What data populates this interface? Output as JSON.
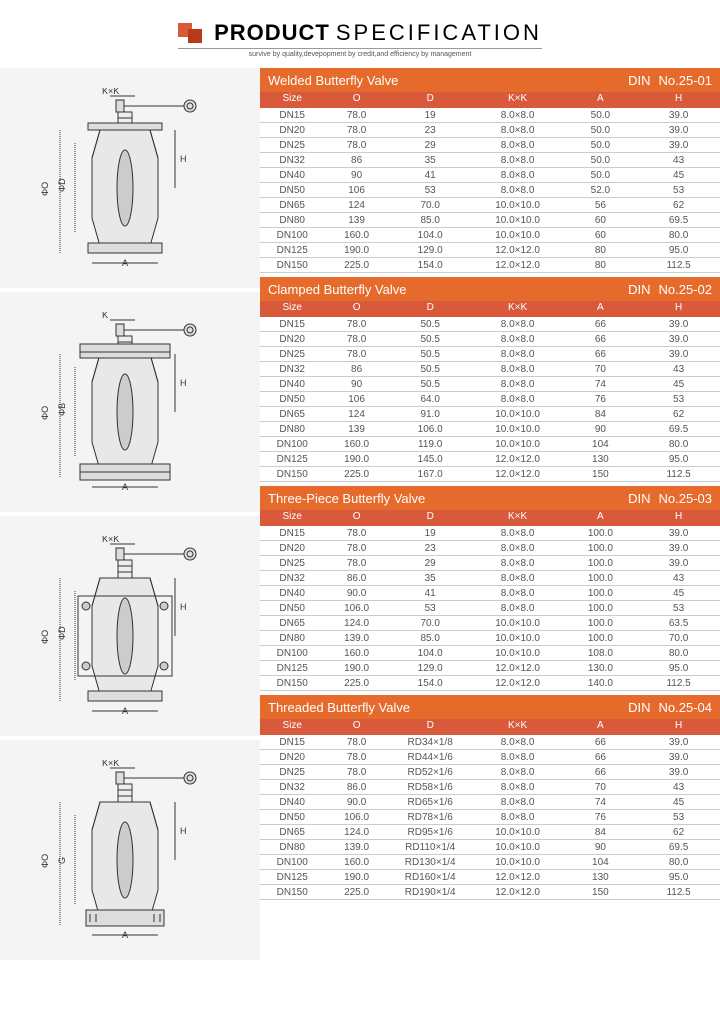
{
  "header": {
    "title_bold": "PRODUCT",
    "title_thin": "SPECIFICATION",
    "subtitle": "survive by quality,devepopment by credit,and efficiency by management"
  },
  "colors": {
    "header_bg": "#e66a2c",
    "subheader_bg": "#d85a3a",
    "logo1": "#d85a3a",
    "logo2": "#b83a1a",
    "diagram_bg": "#f4f4f4",
    "border": "#cccccc",
    "text": "#555555"
  },
  "columns": [
    "Size",
    "O",
    "D",
    "K×K",
    "A",
    "H"
  ],
  "column_widths_pct": [
    14,
    14,
    18,
    20,
    16,
    18
  ],
  "sections": [
    {
      "title": "Welded Butterfly Valve",
      "din": "DIN",
      "no": "No.25-01",
      "diagram_labels": [
        "K×K",
        "H",
        "ΦO",
        "ΦD",
        "A"
      ],
      "rows": [
        [
          "DN15",
          "78.0",
          "19",
          "8.0×8.0",
          "50.0",
          "39.0"
        ],
        [
          "DN20",
          "78.0",
          "23",
          "8.0×8.0",
          "50.0",
          "39.0"
        ],
        [
          "DN25",
          "78.0",
          "29",
          "8.0×8.0",
          "50.0",
          "39.0"
        ],
        [
          "DN32",
          "86",
          "35",
          "8.0×8.0",
          "50.0",
          "43"
        ],
        [
          "DN40",
          "90",
          "41",
          "8.0×8.0",
          "50.0",
          "45"
        ],
        [
          "DN50",
          "106",
          "53",
          "8.0×8.0",
          "52.0",
          "53"
        ],
        [
          "DN65",
          "124",
          "70.0",
          "10.0×10.0",
          "56",
          "62"
        ],
        [
          "DN80",
          "139",
          "85.0",
          "10.0×10.0",
          "60",
          "69.5"
        ],
        [
          "DN100",
          "160.0",
          "104.0",
          "10.0×10.0",
          "60",
          "80.0"
        ],
        [
          "DN125",
          "190.0",
          "129.0",
          "12.0×12.0",
          "80",
          "95.0"
        ],
        [
          "DN150",
          "225.0",
          "154.0",
          "12.0×12.0",
          "80",
          "112.5"
        ]
      ]
    },
    {
      "title": "Clamped Butterfly Valve",
      "din": "DIN",
      "no": "No.25-02",
      "diagram_labels": [
        "K",
        "H",
        "ΦO",
        "ΦB",
        "A"
      ],
      "rows": [
        [
          "DN15",
          "78.0",
          "50.5",
          "8.0×8.0",
          "66",
          "39.0"
        ],
        [
          "DN20",
          "78.0",
          "50.5",
          "8.0×8.0",
          "66",
          "39.0"
        ],
        [
          "DN25",
          "78.0",
          "50.5",
          "8.0×8.0",
          "66",
          "39.0"
        ],
        [
          "DN32",
          "86",
          "50.5",
          "8.0×8.0",
          "70",
          "43"
        ],
        [
          "DN40",
          "90",
          "50.5",
          "8.0×8.0",
          "74",
          "45"
        ],
        [
          "DN50",
          "106",
          "64.0",
          "8.0×8.0",
          "76",
          "53"
        ],
        [
          "DN65",
          "124",
          "91.0",
          "10.0×10.0",
          "84",
          "62"
        ],
        [
          "DN80",
          "139",
          "106.0",
          "10.0×10.0",
          "90",
          "69.5"
        ],
        [
          "DN100",
          "160.0",
          "119.0",
          "10.0×10.0",
          "104",
          "80.0"
        ],
        [
          "DN125",
          "190.0",
          "145.0",
          "12.0×12.0",
          "130",
          "95.0"
        ],
        [
          "DN150",
          "225.0",
          "167.0",
          "12.0×12.0",
          "150",
          "112.5"
        ]
      ]
    },
    {
      "title": "Three-Piece Butterfly Valve",
      "din": "DIN",
      "no": "No.25-03",
      "diagram_labels": [
        "K×K",
        "H",
        "ΦO",
        "ΦD",
        "A"
      ],
      "rows": [
        [
          "DN15",
          "78.0",
          "19",
          "8.0×8.0",
          "100.0",
          "39.0"
        ],
        [
          "DN20",
          "78.0",
          "23",
          "8.0×8.0",
          "100.0",
          "39.0"
        ],
        [
          "DN25",
          "78.0",
          "29",
          "8.0×8.0",
          "100.0",
          "39.0"
        ],
        [
          "DN32",
          "86.0",
          "35",
          "8.0×8.0",
          "100.0",
          "43"
        ],
        [
          "DN40",
          "90.0",
          "41",
          "8.0×8.0",
          "100.0",
          "45"
        ],
        [
          "DN50",
          "106.0",
          "53",
          "8.0×8.0",
          "100.0",
          "53"
        ],
        [
          "DN65",
          "124.0",
          "70.0",
          "10.0×10.0",
          "100.0",
          "63.5"
        ],
        [
          "DN80",
          "139.0",
          "85.0",
          "10.0×10.0",
          "100.0",
          "70.0"
        ],
        [
          "DN100",
          "160.0",
          "104.0",
          "10.0×10.0",
          "108.0",
          "80.0"
        ],
        [
          "DN125",
          "190.0",
          "129.0",
          "12.0×12.0",
          "130.0",
          "95.0"
        ],
        [
          "DN150",
          "225.0",
          "154.0",
          "12.0×12.0",
          "140.0",
          "112.5"
        ]
      ]
    },
    {
      "title": "Threaded Butterfly Valve",
      "din": "DIN",
      "no": "No.25-04",
      "diagram_labels": [
        "K×K",
        "H",
        "ΦO",
        "G",
        "A"
      ],
      "rows": [
        [
          "DN15",
          "78.0",
          "RD34×1/8",
          "8.0×8.0",
          "66",
          "39.0"
        ],
        [
          "DN20",
          "78.0",
          "RD44×1/6",
          "8.0×8.0",
          "66",
          "39.0"
        ],
        [
          "DN25",
          "78.0",
          "RD52×1/6",
          "8.0×8.0",
          "66",
          "39.0"
        ],
        [
          "DN32",
          "86.0",
          "RD58×1/6",
          "8.0×8.0",
          "70",
          "43"
        ],
        [
          "DN40",
          "90.0",
          "RD65×1/6",
          "8.0×8.0",
          "74",
          "45"
        ],
        [
          "DN50",
          "106.0",
          "RD78×1/6",
          "8.0×8.0",
          "76",
          "53"
        ],
        [
          "DN65",
          "124.0",
          "RD95×1/6",
          "10.0×10.0",
          "84",
          "62"
        ],
        [
          "DN80",
          "139.0",
          "RD110×1/4",
          "10.0×10.0",
          "90",
          "69.5"
        ],
        [
          "DN100",
          "160.0",
          "RD130×1/4",
          "10.0×10.0",
          "104",
          "80.0"
        ],
        [
          "DN125",
          "190.0",
          "RD160×1/4",
          "12.0×12.0",
          "130",
          "95.0"
        ],
        [
          "DN150",
          "225.0",
          "RD190×1/4",
          "12.0×12.0",
          "150",
          "112.5"
        ]
      ]
    }
  ]
}
